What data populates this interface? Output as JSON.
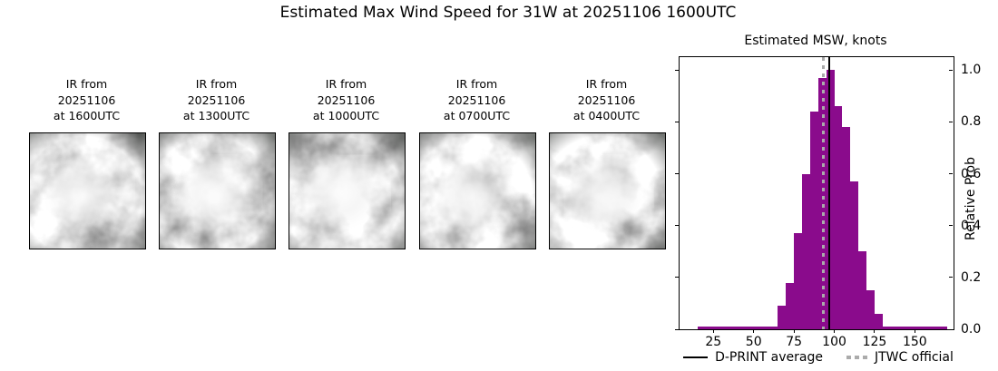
{
  "main_title": "Estimated Max Wind Speed for 31W at 20251106 1600UTC",
  "panels": [
    {
      "line1": "IR from",
      "line2": "20251106",
      "line3": "at 1600UTC"
    },
    {
      "line1": "IR from",
      "line2": "20251106",
      "line3": "at 1300UTC"
    },
    {
      "line1": "IR from",
      "line2": "20251106",
      "line3": "at 1000UTC"
    },
    {
      "line1": "IR from",
      "line2": "20251106",
      "line3": "at 0700UTC"
    },
    {
      "line1": "IR from",
      "line2": "20251106",
      "line3": "at 0400UTC"
    }
  ],
  "chart": {
    "title": "Estimated MSW, knots",
    "ylabel": "Relative Prob",
    "legend": [
      {
        "label": "D-PRINT average",
        "swatch": "black-solid-line"
      },
      {
        "label": "JTWC official",
        "swatch": "gray-dotted-line"
      }
    ],
    "colors": {
      "bar": "#8A0B8C",
      "average_line": "#000000",
      "official_line": "#ABABAB"
    }
  },
  "chart_data": {
    "type": "bar",
    "title": "Estimated MSW, knots",
    "xlabel": "",
    "ylabel": "Relative Prob",
    "xlim": [
      4,
      174
    ],
    "ylim": [
      0,
      1.05
    ],
    "xticks": [
      25,
      50,
      75,
      100,
      125,
      150
    ],
    "yticks": [
      0.0,
      0.2,
      0.4,
      0.6,
      0.8,
      1.0
    ],
    "grid": false,
    "legend_position": "below",
    "bin_width_knots": 5,
    "bars": [
      {
        "x0": 15,
        "x1": 170,
        "h": 0.012
      },
      {
        "x0": 65,
        "x1": 70,
        "h": 0.09
      },
      {
        "x0": 70,
        "x1": 75,
        "h": 0.18
      },
      {
        "x0": 75,
        "x1": 80,
        "h": 0.37
      },
      {
        "x0": 80,
        "x1": 85,
        "h": 0.6
      },
      {
        "x0": 85,
        "x1": 90,
        "h": 0.84
      },
      {
        "x0": 90,
        "x1": 95,
        "h": 0.97
      },
      {
        "x0": 95,
        "x1": 100,
        "h": 1.0
      },
      {
        "x0": 100,
        "x1": 105,
        "h": 0.86
      },
      {
        "x0": 105,
        "x1": 110,
        "h": 0.78
      },
      {
        "x0": 110,
        "x1": 115,
        "h": 0.57
      },
      {
        "x0": 115,
        "x1": 120,
        "h": 0.3
      },
      {
        "x0": 120,
        "x1": 125,
        "h": 0.15
      },
      {
        "x0": 125,
        "x1": 130,
        "h": 0.06
      }
    ],
    "dprint_average_knots": 97,
    "jtwc_official_knots": 93
  }
}
